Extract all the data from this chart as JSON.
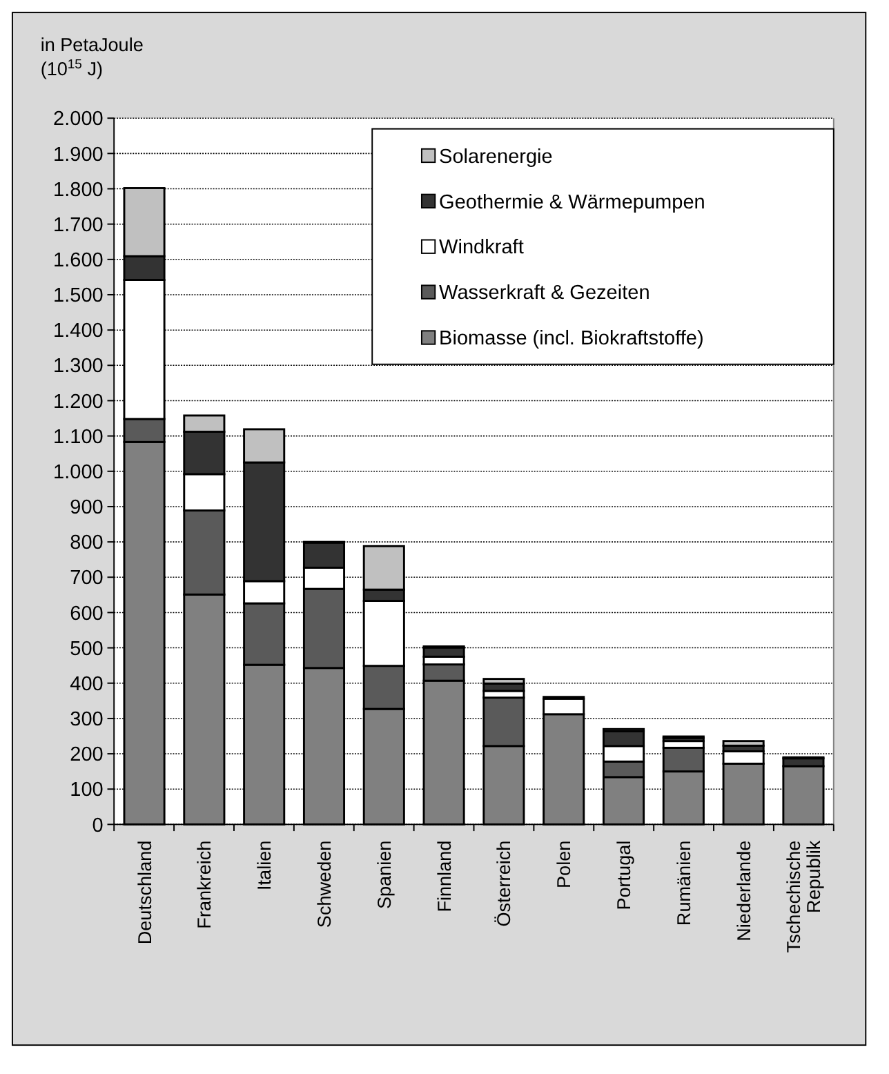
{
  "chart_data": {
    "type": "bar",
    "stacked": true,
    "ylabel": "in PetaJoule\n(10$^{15}$ J)",
    "categories": [
      "Deutschland",
      "Frankreich",
      "Italien",
      "Schweden",
      "Spanien",
      "Finnland",
      "Österreich",
      "Polen",
      "Portugal",
      "Rumänien",
      "Niederlande",
      "Tschechische Republik"
    ],
    "series": [
      {
        "name": "Biomasse (incl. Biokraftstoffe)",
        "color": "#808080",
        "values": [
          1083,
          651,
          452,
          443,
          327,
          407,
          222,
          312,
          134,
          150,
          172,
          165
        ]
      },
      {
        "name": "Wasserkraft & Gezeiten",
        "color": "#5a5a5a",
        "values": [
          65,
          238,
          174,
          224,
          122,
          46,
          137,
          null,
          44,
          67,
          null,
          null
        ]
      },
      {
        "name": "Windkraft",
        "color": "#ffffff",
        "values": [
          394,
          103,
          63,
          60,
          184,
          22,
          19,
          44,
          44,
          19,
          35,
          0
        ]
      },
      {
        "name": "Geothermie & Wärmepumpen",
        "color": "#333333",
        "values": [
          67,
          120,
          336,
          71,
          32,
          26,
          21,
          null,
          42,
          9,
          16,
          22
        ]
      },
      {
        "name": "Solarenergie",
        "color": "#c0c0c0",
        "values": [
          193,
          46,
          94,
          2,
          123,
          3,
          13,
          5,
          6,
          4,
          13,
          3
        ]
      }
    ],
    "ylim": [
      0,
      2000
    ],
    "yticks": [
      0,
      100,
      200,
      300,
      400,
      500,
      600,
      700,
      800,
      900,
      {
        "value": 1000,
        "label": "1.000"
      },
      {
        "value": 1100,
        "label": "1.100"
      },
      {
        "value": 1200,
        "label": "1.200"
      },
      {
        "value": 1300,
        "label": "1.300"
      },
      {
        "value": 1400,
        "label": "1.400"
      },
      {
        "value": 1500,
        "label": "1.500"
      },
      {
        "value": 1600,
        "label": "1.600"
      },
      {
        "value": 1700,
        "label": "1.700"
      },
      {
        "value": 1800,
        "label": "1.800"
      },
      {
        "value": 1900,
        "label": "1.900"
      },
      {
        "value": 2000,
        "label": "2.000"
      }
    ],
    "grid": "y",
    "legend": "top right"
  }
}
